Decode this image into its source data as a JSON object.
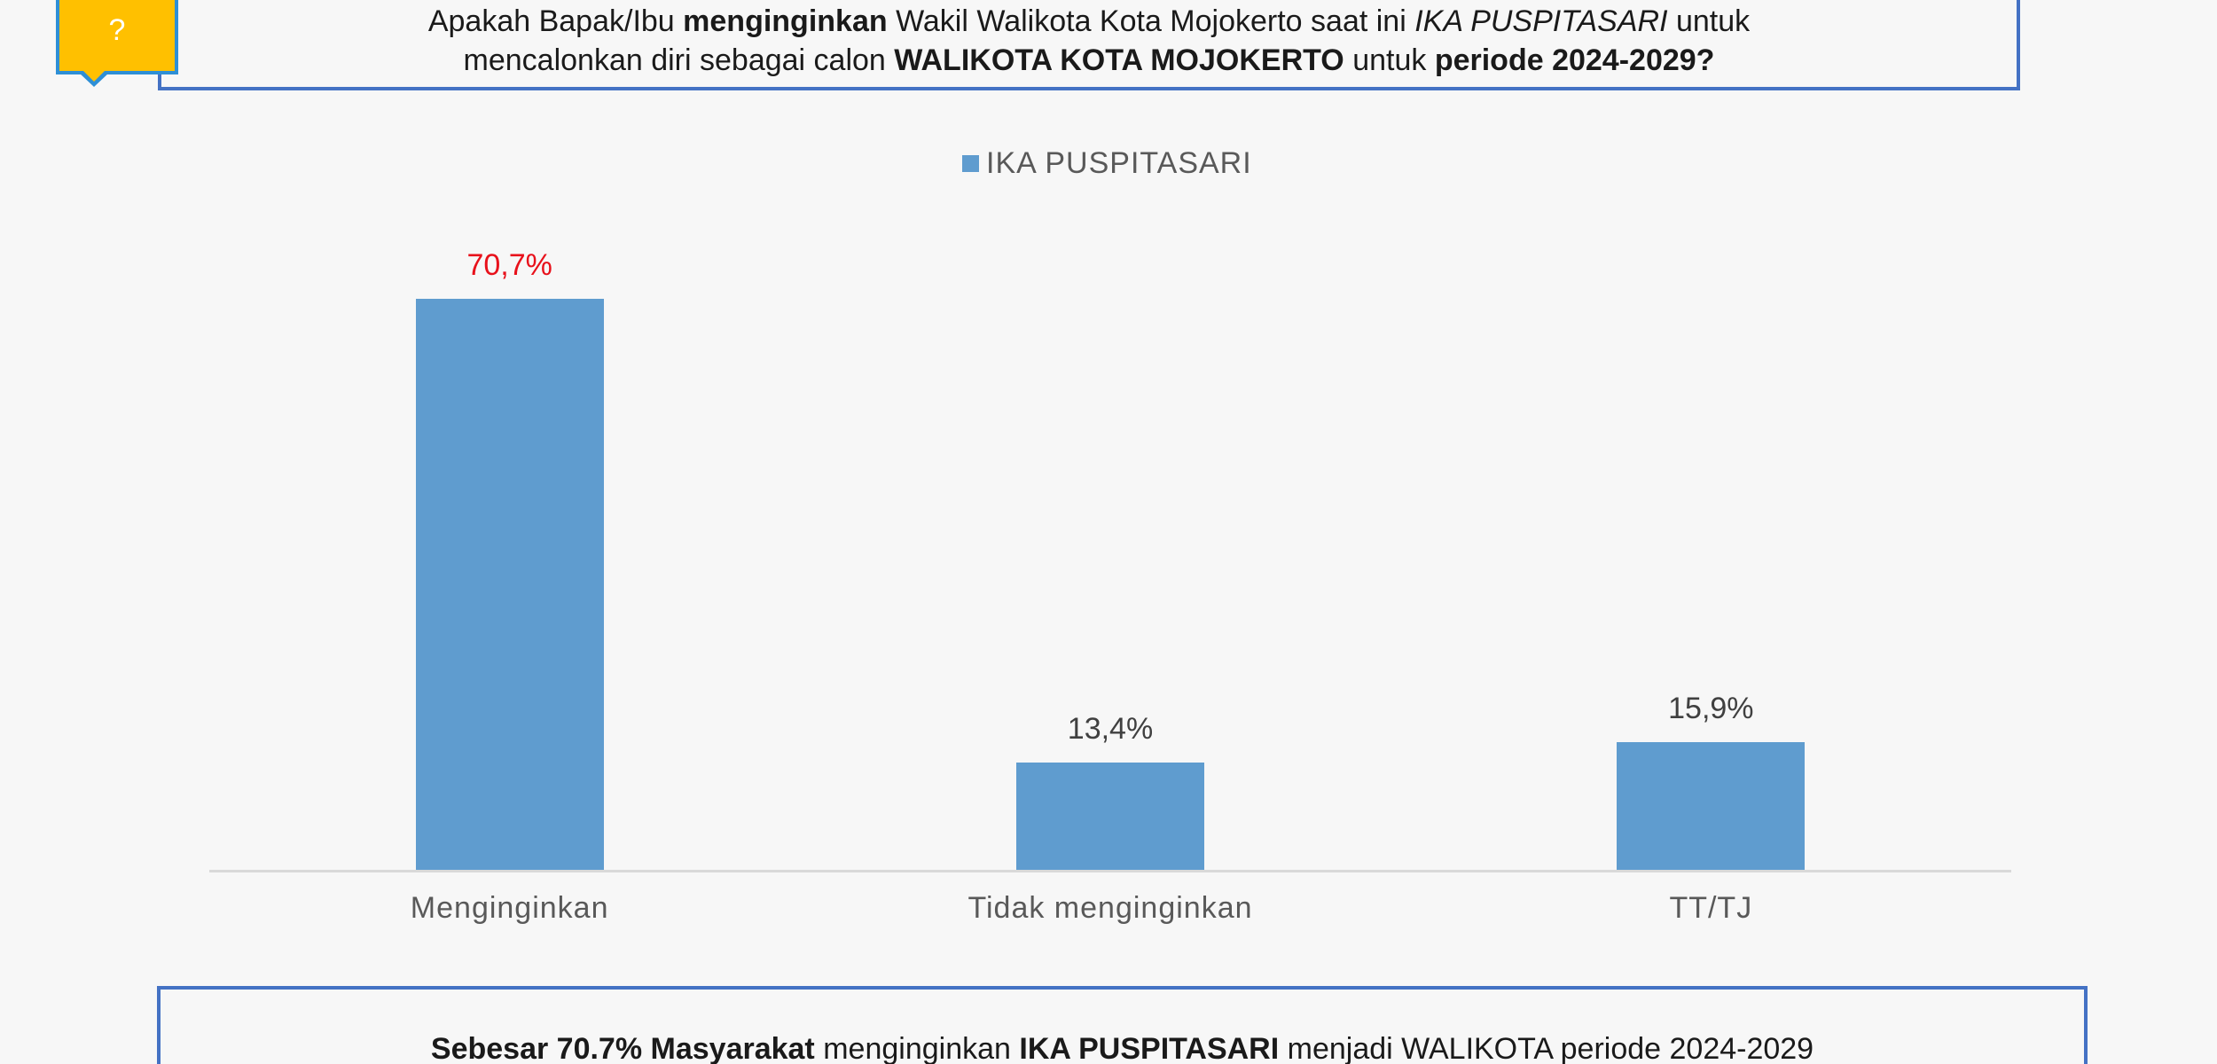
{
  "badge": {
    "glyph": "?",
    "icon": "question-icon"
  },
  "question": {
    "line1": [
      {
        "text": "Apakah Bapak/Ibu ",
        "style": "normal"
      },
      {
        "text": "menginginkan",
        "style": "bold"
      },
      {
        "text": " Wakil Walikota Kota Mojokerto saat ini ",
        "style": "normal"
      },
      {
        "text": "IKA PUSPITASARI",
        "style": "italic"
      },
      {
        "text": " untuk",
        "style": "normal"
      }
    ],
    "line2": [
      {
        "text": "mencalonkan diri sebagai calon ",
        "style": "normal"
      },
      {
        "text": "WALIKOTA KOTA MOJOKERTO",
        "style": "bold"
      },
      {
        "text": " untuk ",
        "style": "normal"
      },
      {
        "text": "periode 2024-2029?",
        "style": "bold"
      }
    ]
  },
  "colors": {
    "bar": "#5f9ccf",
    "highlight_label": "#e8111b",
    "normal_label": "#404040",
    "frame": "#4472c4",
    "badge_fill": "#ffc000",
    "badge_border": "#2e8fd6"
  },
  "chart_data": {
    "type": "bar",
    "title": "",
    "categories": [
      "Menginginkan",
      "Tidak menginginkan",
      "TT/TJ"
    ],
    "series": [
      {
        "name": "IKA PUSPITASARI",
        "values": [
          70.7,
          13.4,
          15.9
        ]
      }
    ],
    "value_labels": [
      "70,7%",
      "13,4%",
      "15,9%"
    ],
    "highlighted_index": 0,
    "legend": {
      "position": "top",
      "entries": [
        "IKA PUSPITASARI"
      ]
    },
    "xlabel": "",
    "ylabel": "",
    "ylim": [
      0,
      80
    ],
    "grid": false
  },
  "summary": {
    "parts": [
      {
        "text": "Sebesar 70.7% Masyarakat",
        "style": "bold"
      },
      {
        "text": " menginginkan ",
        "style": "normal"
      },
      {
        "text": "IKA PUSPITASARI",
        "style": "bold"
      },
      {
        "text": " menjadi WALIKOTA periode 2024-2029",
        "style": "normal"
      }
    ]
  }
}
